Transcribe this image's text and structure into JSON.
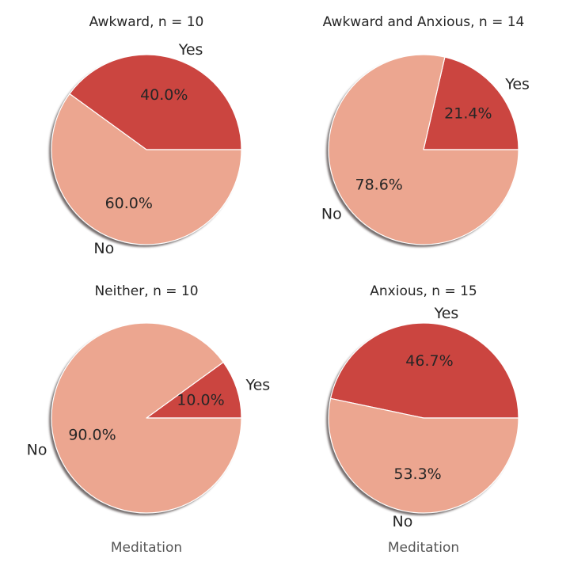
{
  "chart_data": [
    {
      "type": "pie",
      "title": "Awkward, n = 10",
      "xlabel": "",
      "slices": [
        {
          "label": "Yes",
          "value": 40.0,
          "pct_label": "40.0%",
          "color": "#cb4540"
        },
        {
          "label": "No",
          "value": 60.0,
          "pct_label": "60.0%",
          "color": "#eca690"
        }
      ]
    },
    {
      "type": "pie",
      "title": "Awkward and Anxious, n = 14",
      "xlabel": "",
      "slices": [
        {
          "label": "Yes",
          "value": 21.4,
          "pct_label": "21.4%",
          "color": "#cb4540"
        },
        {
          "label": "No",
          "value": 78.6,
          "pct_label": "78.6%",
          "color": "#eca690"
        }
      ]
    },
    {
      "type": "pie",
      "title": "Neither, n = 10",
      "xlabel": "Meditation",
      "slices": [
        {
          "label": "Yes",
          "value": 10.0,
          "pct_label": "10.0%",
          "color": "#cb4540"
        },
        {
          "label": "No",
          "value": 90.0,
          "pct_label": "90.0%",
          "color": "#eca690"
        }
      ]
    },
    {
      "type": "pie",
      "title": "Anxious, n = 15",
      "xlabel": "Meditation",
      "slices": [
        {
          "label": "Yes",
          "value": 46.7,
          "pct_label": "46.7%",
          "color": "#cb4540"
        },
        {
          "label": "No",
          "value": 53.3,
          "pct_label": "53.3%",
          "color": "#eca690"
        }
      ]
    }
  ]
}
